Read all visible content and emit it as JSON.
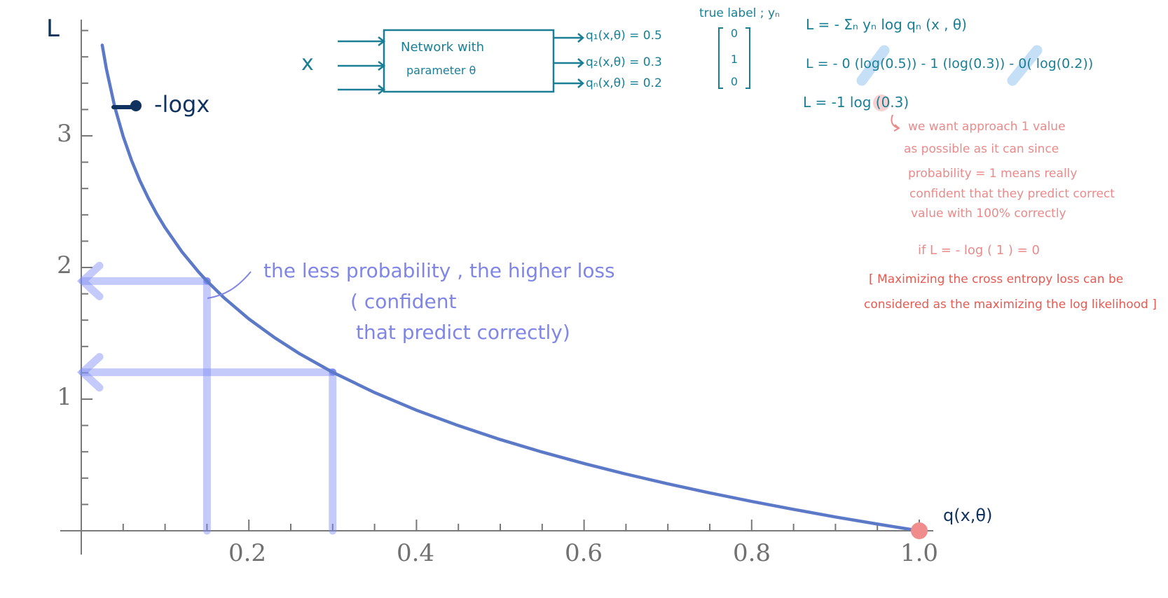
{
  "chart_data": {
    "type": "line",
    "function": "-log x",
    "x_ticks": [
      0.2,
      0.4,
      0.6,
      0.8,
      1.0
    ],
    "y_ticks": [
      1,
      2,
      3
    ],
    "xlim": [
      0,
      1.03
    ],
    "ylim": [
      0,
      3.8
    ],
    "x": [
      0.025,
      0.03,
      0.04,
      0.05,
      0.06,
      0.07,
      0.08,
      0.09,
      0.1,
      0.12,
      0.14,
      0.15,
      0.17,
      0.2,
      0.23,
      0.26,
      0.3,
      0.35,
      0.4,
      0.45,
      0.5,
      0.55,
      0.6,
      0.65,
      0.7,
      0.75,
      0.8,
      0.85,
      0.9,
      0.95,
      1.0
    ],
    "y": [
      3.689,
      3.507,
      3.219,
      2.996,
      2.813,
      2.659,
      2.526,
      2.408,
      2.303,
      2.12,
      1.966,
      1.897,
      1.772,
      1.609,
      1.47,
      1.347,
      1.204,
      1.05,
      0.916,
      0.799,
      0.693,
      0.598,
      0.511,
      0.431,
      0.357,
      0.288,
      0.223,
      0.163,
      0.105,
      0.051,
      0.0
    ],
    "highlight_points": [
      {
        "x": 0.15,
        "y": 1.897
      },
      {
        "x": 0.3,
        "y": 1.204
      }
    ],
    "end_point": {
      "x": 1.0,
      "y": 0.0
    },
    "ylabel": "L",
    "xlabel": "q(x,θ)",
    "curve_label": "-logx",
    "grid": false,
    "colors": {
      "curve": "#5b79c7",
      "highlight": "#7d8cf4",
      "axis": "#777777",
      "end_point": "#f08c8c"
    }
  },
  "annotations": {
    "network": {
      "input": "x",
      "box_line1": "Network  with",
      "box_line2": "parameter  θ",
      "outputs": [
        "q₁(x,θ) = 0.5",
        "q₂(x,θ) = 0.3",
        "qₙ(x,θ) = 0.2"
      ]
    },
    "true_label": {
      "title": "true label ; yₙ",
      "values": [
        "0",
        "1",
        "0"
      ]
    },
    "formulas": [
      "L =  - Σₙ yₙ log qₙ (x , θ)",
      "L = - 0 (log(0.5)) - 1 (log(0.3)) - 0( log(0.2))",
      "L =  -1 log (0.3)"
    ],
    "note_pink": [
      "we  want  approach  1  value",
      "as  possible  as  it  can  since",
      "probability  = 1   means  really",
      "confident  that  they  predict  correct",
      "value  with  100%  correctly"
    ],
    "if_line": "if   L =  - log ( 1 ) = 0",
    "note_red": [
      "[ Maximizing  the  cross  entropy  loss  can be",
      "considered  as  the  maximizing  the  log likelihood ]"
    ],
    "purple_note": [
      "the  less  probability ,  the  higher  loss",
      "( confident",
      "that  predict  correctly)"
    ]
  }
}
